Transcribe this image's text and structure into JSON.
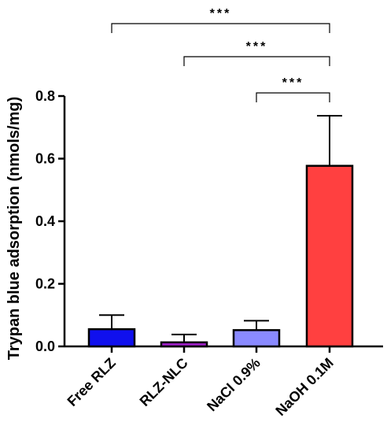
{
  "chart_data": {
    "type": "bar",
    "ylabel": "Trypan blue adsorption (nmols/mg)",
    "xlabel": "",
    "ylim": [
      0,
      0.8
    ],
    "yticks": [
      0.0,
      0.2,
      0.4,
      0.6,
      0.8
    ],
    "ytick_labels": [
      "0.0",
      "0.2",
      "0.4",
      "0.6",
      "0.8"
    ],
    "grid": false,
    "categories": [
      "Free RLZ",
      "RLZ-NLC",
      "NaCl 0.9%",
      "NaOH 0.1M"
    ],
    "values": [
      0.055,
      0.013,
      0.052,
      0.577
    ],
    "errors": [
      0.045,
      0.025,
      0.03,
      0.16
    ],
    "colors": [
      "#1010ee",
      "#a020c8",
      "#8a8aff",
      "#ff4040"
    ],
    "significance": [
      {
        "from": "Free RLZ",
        "to": "NaOH 0.1M",
        "label": "***"
      },
      {
        "from": "RLZ-NLC",
        "to": "NaOH 0.1M",
        "label": "***"
      },
      {
        "from": "NaCl 0.9%",
        "to": "NaOH 0.1M",
        "label": "***"
      }
    ]
  }
}
